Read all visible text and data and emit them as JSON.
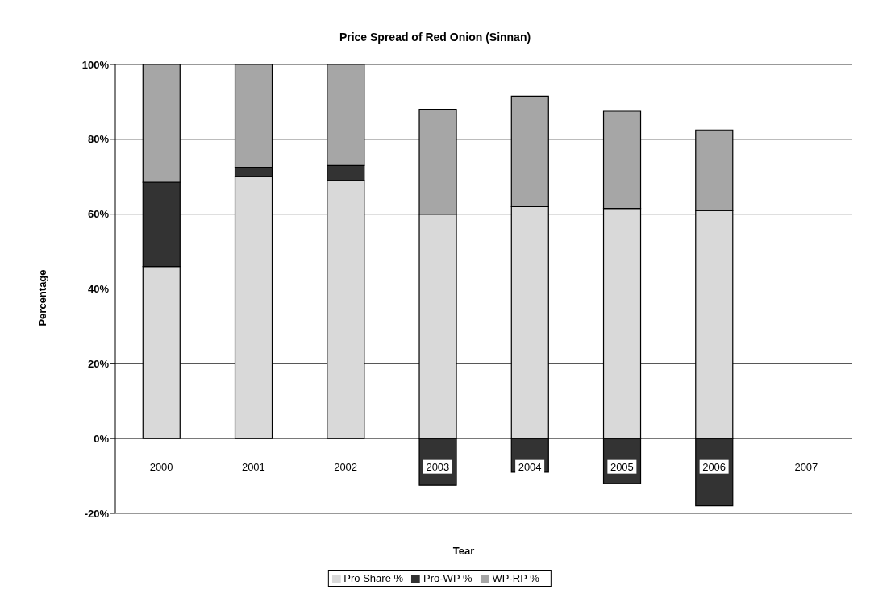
{
  "chart_data": {
    "type": "bar",
    "title": "Price Spread of Red Onion (Sinnan)",
    "xlabel": "Tear",
    "ylabel": "Percentage",
    "categories": [
      "2000",
      "2001",
      "2002",
      "2003",
      "2004",
      "2005",
      "2006",
      "2007"
    ],
    "series": [
      {
        "name": "Pro Share %",
        "color": "#d9d9d9",
        "values": [
          46,
          70,
          69,
          60,
          62,
          61.5,
          61,
          null
        ]
      },
      {
        "name": "Pro-WP %",
        "color": "#333333",
        "values": [
          22.5,
          2.5,
          4,
          -12.5,
          -9,
          -12,
          -18,
          null
        ]
      },
      {
        "name": "WP-RP %",
        "color": "#a6a6a6",
        "values": [
          31.5,
          27.5,
          27,
          28,
          29.5,
          26,
          21.5,
          null
        ]
      }
    ],
    "stacked": true,
    "ylim": [
      -20,
      100
    ],
    "yticks": [
      {
        "value": -20,
        "label": "-20%"
      },
      {
        "value": 0,
        "label": "0%"
      },
      {
        "value": 20,
        "label": "20%"
      },
      {
        "value": 40,
        "label": "40%"
      },
      {
        "value": 60,
        "label": "60%"
      },
      {
        "value": 80,
        "label": "80%"
      },
      {
        "value": 100,
        "label": "100%"
      }
    ],
    "grid": "y",
    "legend": "bottom"
  }
}
